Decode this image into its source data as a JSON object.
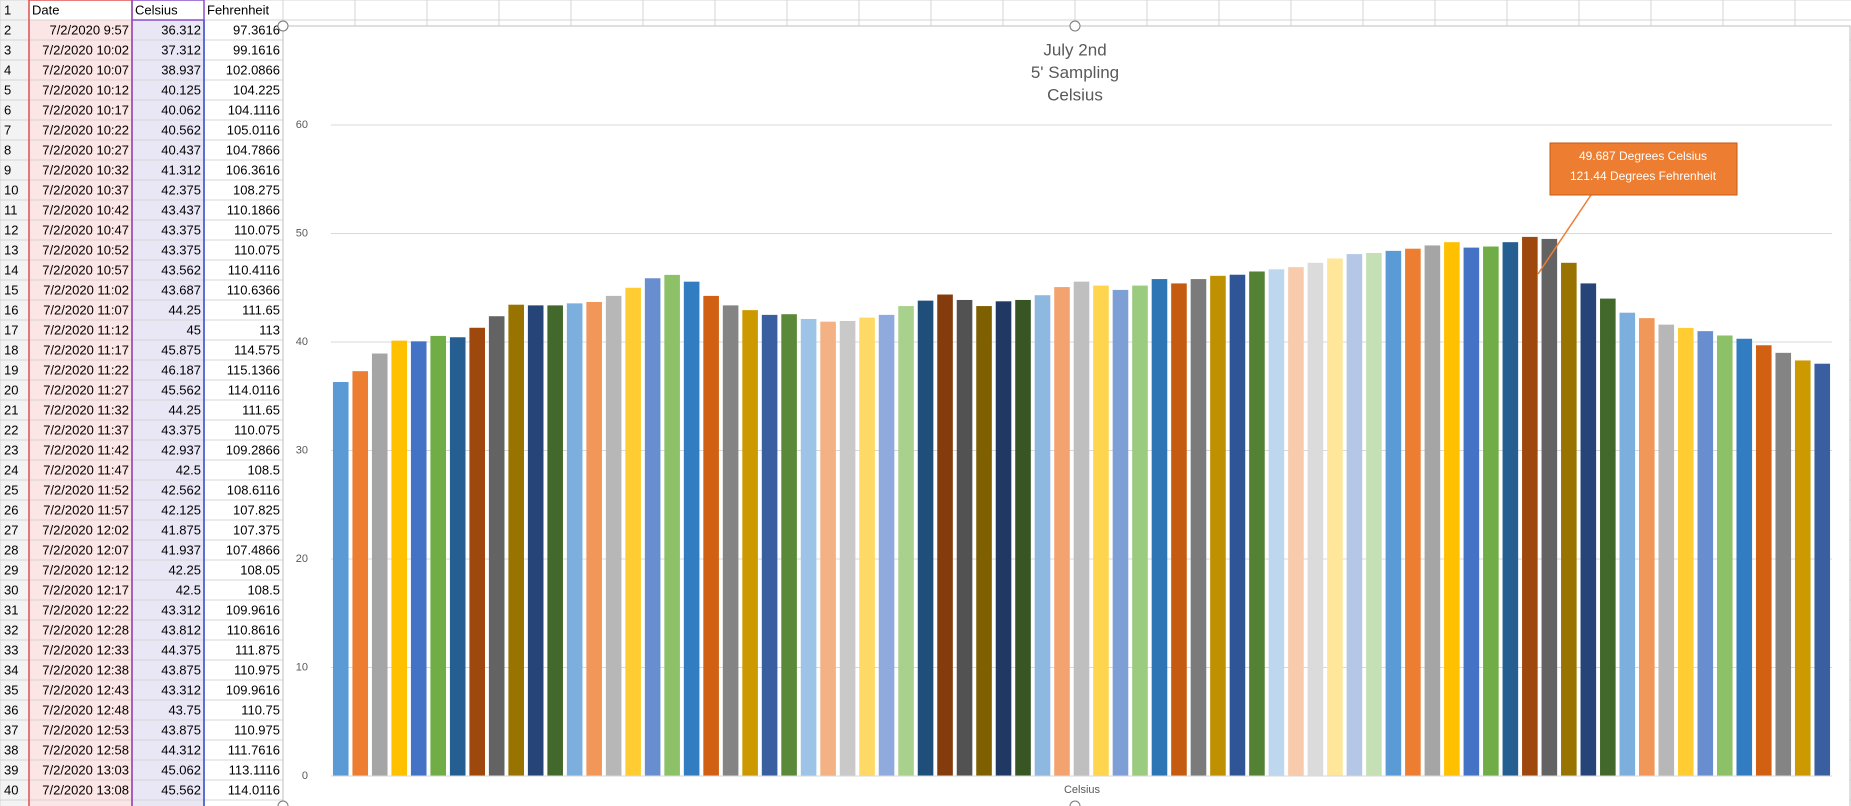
{
  "sheet": {
    "row_numbers": [
      1,
      2,
      3,
      4,
      5,
      6,
      7,
      8,
      9,
      10,
      11,
      12,
      13,
      14,
      15,
      16,
      17,
      18,
      19,
      20,
      21,
      22,
      23,
      24,
      25,
      26,
      27,
      28,
      29,
      30,
      31,
      32,
      33,
      34,
      35,
      36,
      37,
      38,
      39,
      40
    ],
    "columns": [
      "Date",
      "Celsius",
      "Fehrenheit"
    ],
    "rows": [
      [
        "7/2/2020 9:57",
        36.312,
        97.3616
      ],
      [
        "7/2/2020 10:02",
        37.312,
        99.1616
      ],
      [
        "7/2/2020 10:07",
        38.937,
        102.0866
      ],
      [
        "7/2/2020 10:12",
        40.125,
        104.225
      ],
      [
        "7/2/2020 10:17",
        40.062,
        104.1116
      ],
      [
        "7/2/2020 10:22",
        40.562,
        105.0116
      ],
      [
        "7/2/2020 10:27",
        40.437,
        104.7866
      ],
      [
        "7/2/2020 10:32",
        41.312,
        106.3616
      ],
      [
        "7/2/2020 10:37",
        42.375,
        108.275
      ],
      [
        "7/2/2020 10:42",
        43.437,
        110.1866
      ],
      [
        "7/2/2020 10:47",
        43.375,
        110.075
      ],
      [
        "7/2/2020 10:52",
        43.375,
        110.075
      ],
      [
        "7/2/2020 10:57",
        43.562,
        110.4116
      ],
      [
        "7/2/2020 11:02",
        43.687,
        110.6366
      ],
      [
        "7/2/2020 11:07",
        44.25,
        111.65
      ],
      [
        "7/2/2020 11:12",
        45,
        113
      ],
      [
        "7/2/2020 11:17",
        45.875,
        114.575
      ],
      [
        "7/2/2020 11:22",
        46.187,
        115.1366
      ],
      [
        "7/2/2020 11:27",
        45.562,
        114.0116
      ],
      [
        "7/2/2020 11:32",
        44.25,
        111.65
      ],
      [
        "7/2/2020 11:37",
        43.375,
        110.075
      ],
      [
        "7/2/2020 11:42",
        42.937,
        109.2866
      ],
      [
        "7/2/2020 11:47",
        42.5,
        108.5
      ],
      [
        "7/2/2020 11:52",
        42.562,
        108.6116
      ],
      [
        "7/2/2020 11:57",
        42.125,
        107.825
      ],
      [
        "7/2/2020 12:02",
        41.875,
        107.375
      ],
      [
        "7/2/2020 12:07",
        41.937,
        107.4866
      ],
      [
        "7/2/2020 12:12",
        42.25,
        108.05
      ],
      [
        "7/2/2020 12:17",
        42.5,
        108.5
      ],
      [
        "7/2/2020 12:22",
        43.312,
        109.9616
      ],
      [
        "7/2/2020 12:28",
        43.812,
        110.8616
      ],
      [
        "7/2/2020 12:33",
        44.375,
        111.875
      ],
      [
        "7/2/2020 12:38",
        43.875,
        110.975
      ],
      [
        "7/2/2020 12:43",
        43.312,
        109.9616
      ],
      [
        "7/2/2020 12:48",
        43.75,
        110.75
      ],
      [
        "7/2/2020 12:53",
        43.875,
        110.975
      ],
      [
        "7/2/2020 12:58",
        44.312,
        111.7616
      ],
      [
        "7/2/2020 13:03",
        45.062,
        113.1116
      ],
      [
        "7/2/2020 13:08",
        45.562,
        114.0116
      ]
    ]
  },
  "chart_data": {
    "type": "bar",
    "title_lines": [
      "July 2nd",
      "5' Sampling",
      "Celsius"
    ],
    "xlabel": "Celsius",
    "values": [
      36.312,
      37.312,
      38.937,
      40.125,
      40.062,
      40.562,
      40.437,
      41.312,
      42.375,
      43.437,
      43.375,
      43.375,
      43.562,
      43.687,
      44.25,
      45,
      45.875,
      46.187,
      45.562,
      44.25,
      43.375,
      42.937,
      42.5,
      42.562,
      42.125,
      41.875,
      41.937,
      42.25,
      42.5,
      43.312,
      43.812,
      44.375,
      43.875,
      43.312,
      43.75,
      43.875,
      44.312,
      45.062,
      45.562,
      45.2,
      44.8,
      45.2,
      45.8,
      45.4,
      45.8,
      46.1,
      46.2,
      46.5,
      46.7,
      46.9,
      47.3,
      47.7,
      48.1,
      48.2,
      48.4,
      48.6,
      48.9,
      49.2,
      48.7,
      48.8,
      49.2,
      49.687,
      49.5,
      47.3,
      45.4,
      44.0,
      42.7,
      42.2,
      41.6,
      41.3,
      41.0,
      40.6,
      40.3,
      39.7,
      39.0,
      38.3,
      38.0
    ],
    "colors": [
      "#5B9BD5",
      "#ED7D31",
      "#A5A5A5",
      "#FFC000",
      "#4472C4",
      "#70AD47",
      "#255E91",
      "#9E480E",
      "#636363",
      "#997300",
      "#264478",
      "#43682B",
      "#7CAFDD",
      "#F1975A",
      "#B7B7B7",
      "#FFCD33",
      "#698ED0",
      "#8CC168",
      "#327DC2",
      "#D26012",
      "#848484",
      "#CC9A00",
      "#3A5FA0",
      "#5A8A39",
      "#9DC3E6",
      "#F4B183",
      "#C9C9C9",
      "#FFD966",
      "#8FAADC",
      "#A9D18E",
      "#1E4E79",
      "#843C0C",
      "#525252",
      "#7F6000",
      "#203864",
      "#375623",
      "#8FB8E0",
      "#F3A370",
      "#BFBFBF",
      "#FFD54F",
      "#7E9ED6",
      "#9BCB7F",
      "#2E75B6",
      "#C55A11",
      "#7B7B7B",
      "#BF9000",
      "#2F5597",
      "#548235",
      "#BDD7EE",
      "#F8CBAD",
      "#DBDBDB",
      "#FFE699",
      "#B4C7E7",
      "#C5E0B4",
      "#5B9BD5",
      "#ED7D31",
      "#A5A5A5",
      "#FFC000",
      "#4472C4",
      "#70AD47",
      "#255E91",
      "#9E480E",
      "#636363",
      "#997300",
      "#264478",
      "#43682B",
      "#7CAFDD",
      "#F1975A",
      "#B7B7B7",
      "#FFCD33",
      "#698ED0",
      "#8CC168",
      "#327DC2",
      "#D26012",
      "#848484",
      "#CC9A00",
      "#3A5FA0"
    ],
    "ylim": [
      0,
      60
    ],
    "yticks": [
      0,
      10,
      20,
      30,
      40,
      50,
      60
    ],
    "grid": true,
    "annotation": [
      "49.687 Degrees Celsius",
      "121.44 Degrees Fehrenheit"
    ]
  }
}
